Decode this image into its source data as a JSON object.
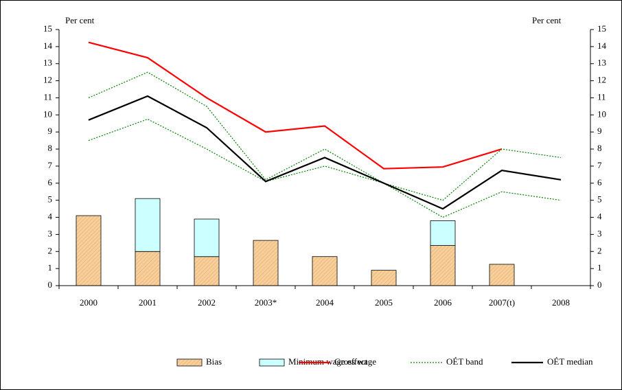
{
  "chart_data": {
    "type": "combo",
    "y_label": "Per cent",
    "y2_label": "Per cent",
    "categories": [
      "2000",
      "2001",
      "2002",
      "2003*",
      "2004",
      "2005",
      "2006",
      "2007(t)",
      "2008"
    ],
    "ylim": [
      0,
      15
    ],
    "yticks": [
      0,
      1,
      2,
      3,
      4,
      5,
      6,
      7,
      8,
      9,
      10,
      11,
      12,
      13,
      14,
      15
    ],
    "y2lim": [
      0,
      15
    ],
    "y2ticks": [
      0,
      1,
      2,
      3,
      4,
      5,
      6,
      7,
      8,
      9,
      10,
      11,
      12,
      13,
      14,
      15
    ],
    "series": [
      {
        "name": "Bias",
        "type": "bar",
        "color": "#f7cf9c",
        "values": [
          4.1,
          2.0,
          1.7,
          2.65,
          1.7,
          0.9,
          2.35,
          1.25,
          null
        ]
      },
      {
        "name": "Minimum wage effect",
        "type": "bar",
        "color": "#ccffff",
        "values": [
          null,
          3.1,
          2.2,
          null,
          null,
          null,
          1.45,
          null,
          null
        ]
      },
      {
        "name": "Gross wage",
        "type": "line",
        "color": "#ff0000",
        "values": [
          14.25,
          13.35,
          11.0,
          9.0,
          9.35,
          6.85,
          6.95,
          8.0,
          null
        ]
      },
      {
        "name": "OÉT band",
        "type": "band",
        "color": "#008000",
        "values": [
          11.0,
          12.5,
          10.5,
          6.2,
          8.0,
          6.0,
          5.0,
          8.0,
          7.5
        ],
        "lower": [
          8.5,
          9.75,
          8.0,
          6.1,
          7.0,
          6.0,
          4.0,
          5.5,
          5.0
        ]
      },
      {
        "name": "OÉT median",
        "type": "line",
        "color": "#000000",
        "values": [
          9.7,
          11.1,
          9.25,
          6.1,
          7.5,
          6.0,
          4.5,
          6.75,
          6.2
        ]
      }
    ]
  }
}
